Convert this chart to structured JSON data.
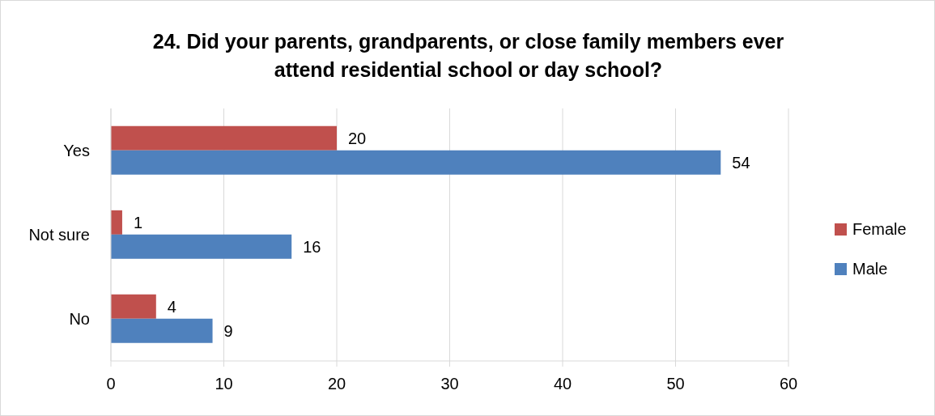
{
  "chart_data": {
    "type": "bar",
    "orientation": "horizontal",
    "title": "24. Did your parents, grandparents, or close family members ever attend residential school or day school?",
    "categories": [
      "Yes",
      "Not sure",
      "No"
    ],
    "series": [
      {
        "name": "Female",
        "color": "#c0504d",
        "values": [
          20,
          1,
          4
        ]
      },
      {
        "name": "Male",
        "color": "#4f81bd",
        "values": [
          54,
          16,
          9
        ]
      }
    ],
    "xlim": [
      0,
      60
    ],
    "xticks": [
      0,
      10,
      20,
      30,
      40,
      50,
      60
    ],
    "grid": "x",
    "legend": "right",
    "data_labels": true
  }
}
